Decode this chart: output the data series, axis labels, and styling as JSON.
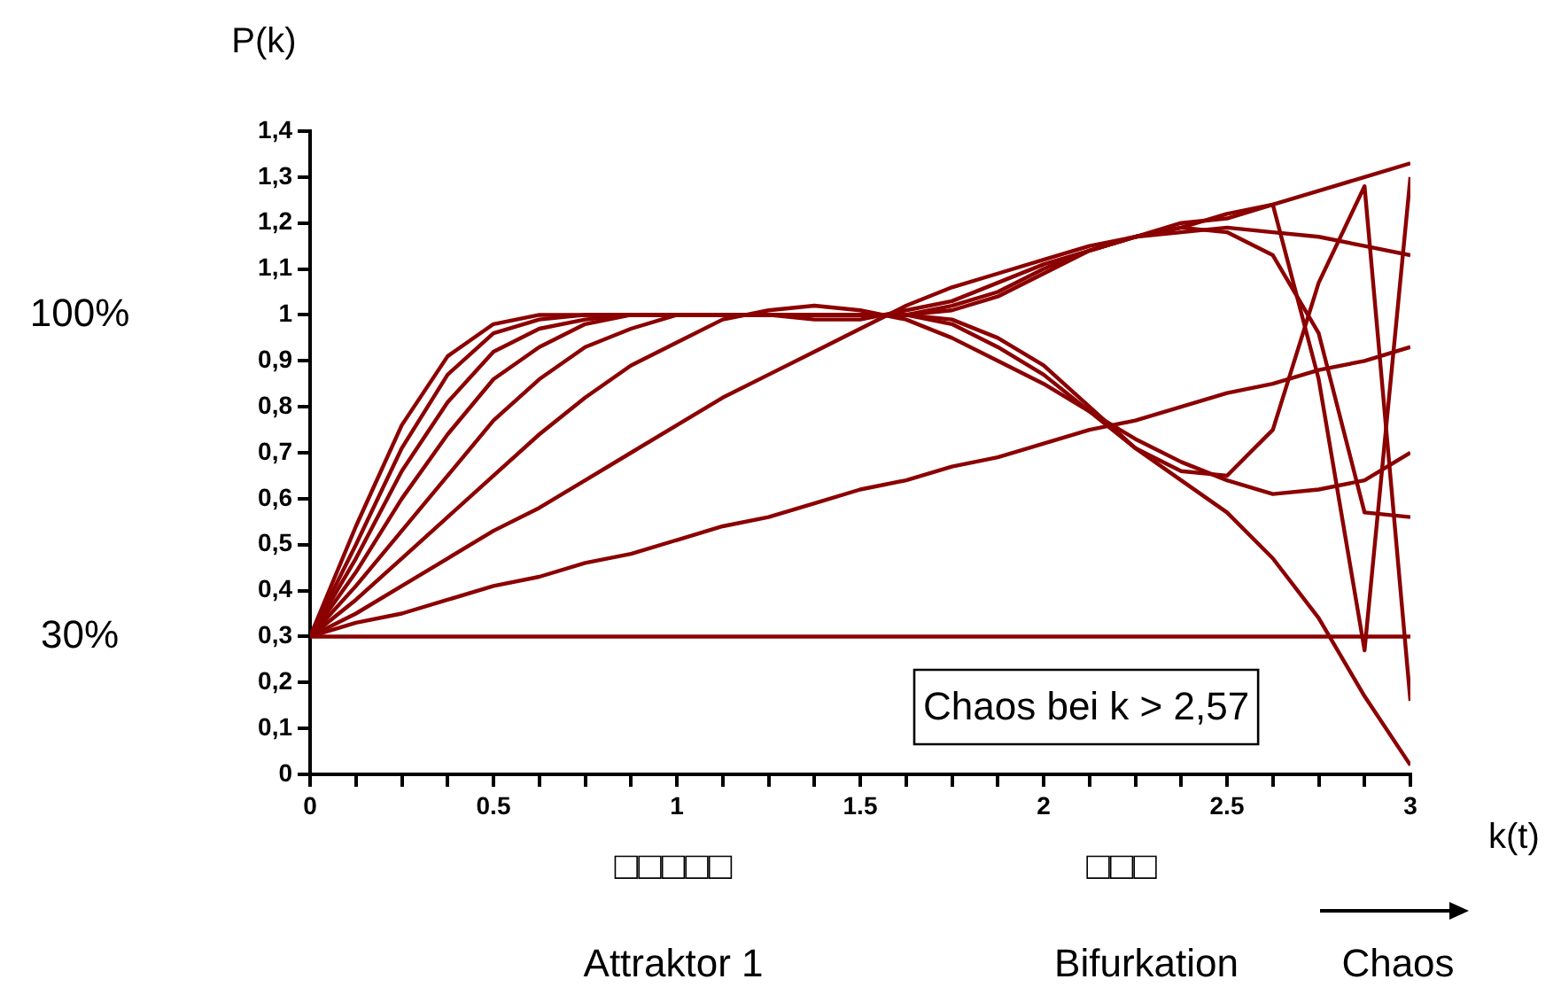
{
  "chart_data": {
    "type": "line",
    "ylabel": "P(k)",
    "xlabel": "k(t)",
    "x": [
      0,
      0.125,
      0.25,
      0.375,
      0.5,
      0.625,
      0.75,
      0.875,
      1,
      1.125,
      1.25,
      1.375,
      1.5,
      1.625,
      1.75,
      1.875,
      2,
      2.125,
      2.25,
      2.375,
      2.5,
      2.625,
      2.75,
      2.875,
      3
    ],
    "xlim": [
      0,
      3
    ],
    "xticks": [
      0,
      {
        "value": 0.125,
        "label": null
      },
      {
        "value": 0.25,
        "label": null
      },
      {
        "value": 0.375,
        "label": null
      },
      "0.5",
      {
        "value": 0.625,
        "label": null
      },
      {
        "value": 0.75,
        "label": null
      },
      {
        "value": 0.875,
        "label": null
      },
      1,
      {
        "value": 1.125,
        "label": null
      },
      {
        "value": 1.25,
        "label": null
      },
      {
        "value": 1.375,
        "label": null
      },
      1.5,
      {
        "value": 1.625,
        "label": null
      },
      {
        "value": 1.75,
        "label": null
      },
      {
        "value": 1.875,
        "label": null
      },
      2,
      {
        "value": 2.125,
        "label": null
      },
      {
        "value": 2.25,
        "label": null
      },
      {
        "value": 2.375,
        "label": null
      },
      2.5,
      {
        "value": 2.625,
        "label": null
      },
      {
        "value": 2.75,
        "label": null
      },
      {
        "value": 2.875,
        "label": null
      },
      3
    ],
    "ylim": [
      0,
      1.4
    ],
    "yticks": [
      0,
      {
        "value": 0.1,
        "label": "0,1"
      },
      {
        "value": 0.2,
        "label": "0,2"
      },
      {
        "value": 0.3,
        "label": "0,3"
      },
      {
        "value": 0.4,
        "label": "0,4"
      },
      {
        "value": 0.5,
        "label": "0,5"
      },
      {
        "value": 0.6,
        "label": "0,6"
      },
      {
        "value": 0.7,
        "label": "0,7"
      },
      {
        "value": 0.8,
        "label": "0,8"
      },
      {
        "value": 0.9,
        "label": "0,9"
      },
      1,
      {
        "value": 1.1,
        "label": "1,1"
      },
      {
        "value": 1.2,
        "label": "1,2"
      },
      {
        "value": 1.3,
        "label": "1,3"
      },
      {
        "value": 1.4,
        "label": "1,4"
      }
    ],
    "grid": false,
    "legend": false,
    "marker": "none",
    "line_style": "solid",
    "series": [
      {
        "color": "#8b0000",
        "values": [
          0.3,
          0.3,
          0.3,
          0.3,
          0.3,
          0.3,
          0.3,
          0.3,
          0.3,
          0.3,
          0.3,
          0.3,
          0.3,
          0.3,
          0.3,
          0.3,
          0.3,
          0.3,
          0.3,
          0.3,
          0.3,
          0.3,
          0.3,
          0.3,
          0.3
        ]
      },
      {
        "color": "#8b0000",
        "values": [
          0.3,
          0.33,
          0.35,
          0.38,
          0.41,
          0.43,
          0.46,
          0.48,
          0.51,
          0.54,
          0.56,
          0.59,
          0.62,
          0.64,
          0.67,
          0.69,
          0.72,
          0.75,
          0.77,
          0.8,
          0.83,
          0.85,
          0.88,
          0.9,
          0.93
        ]
      },
      {
        "color": "#8b0000",
        "values": [
          0.3,
          0.35,
          0.41,
          0.47,
          0.53,
          0.58,
          0.64,
          0.7,
          0.76,
          0.82,
          0.87,
          0.92,
          0.97,
          1.02,
          1.06,
          1.09,
          1.12,
          1.15,
          1.17,
          1.18,
          1.19,
          1.18,
          1.17,
          1.15,
          1.13
        ]
      },
      {
        "color": "#8b0000",
        "values": [
          0.3,
          0.38,
          0.47,
          0.56,
          0.65,
          0.74,
          0.82,
          0.89,
          0.94,
          0.99,
          1.01,
          1.02,
          1.01,
          0.99,
          0.95,
          0.9,
          0.85,
          0.79,
          0.73,
          0.68,
          0.64,
          0.61,
          0.62,
          0.64,
          0.7
        ]
      },
      {
        "color": "#8b0000",
        "values": [
          0.3,
          0.41,
          0.53,
          0.65,
          0.77,
          0.86,
          0.93,
          0.97,
          1,
          1,
          1,
          0.99,
          0.99,
          1.01,
          1.03,
          1.07,
          1.11,
          1.14,
          1.17,
          1.2,
          1.21,
          1.24,
          1.27,
          1.3,
          1.33
        ]
      },
      {
        "color": "#8b0000",
        "values": [
          0.3,
          0.44,
          0.6,
          0.74,
          0.86,
          0.93,
          0.98,
          1,
          1,
          1,
          1,
          1,
          1,
          1,
          0.98,
          0.93,
          0.87,
          0.79,
          0.71,
          0.64,
          0.57,
          0.47,
          0.34,
          0.17,
          0.02
        ]
      },
      {
        "color": "#8b0000",
        "values": [
          0.3,
          0.47,
          0.66,
          0.81,
          0.92,
          0.97,
          0.99,
          1,
          1,
          1,
          1,
          1,
          1,
          1,
          1.02,
          1.05,
          1.1,
          1.14,
          1.17,
          1.19,
          1.18,
          1.13,
          0.96,
          0.57,
          0.56
        ]
      },
      {
        "color": "#8b0000",
        "values": [
          0.3,
          0.5,
          0.71,
          0.87,
          0.96,
          0.99,
          1,
          1,
          1,
          1,
          1,
          1,
          1,
          1,
          0.99,
          0.95,
          0.89,
          0.8,
          0.71,
          0.66,
          0.65,
          0.75,
          1.07,
          1.28,
          0.16
        ]
      },
      {
        "color": "#8b0000",
        "values": [
          0.3,
          0.54,
          0.76,
          0.91,
          0.98,
          1,
          1,
          1,
          1,
          1,
          1,
          1,
          1,
          1,
          1.01,
          1.04,
          1.09,
          1.14,
          1.17,
          1.19,
          1.22,
          1.24,
          0.86,
          0.27,
          1.3
        ]
      }
    ],
    "annotations": [
      "100%",
      "30%",
      "Chaos bei k > 2,57",
      "□□□□□",
      "□□□",
      "Attraktor 1",
      "Bifurkation",
      "Chaos"
    ]
  }
}
